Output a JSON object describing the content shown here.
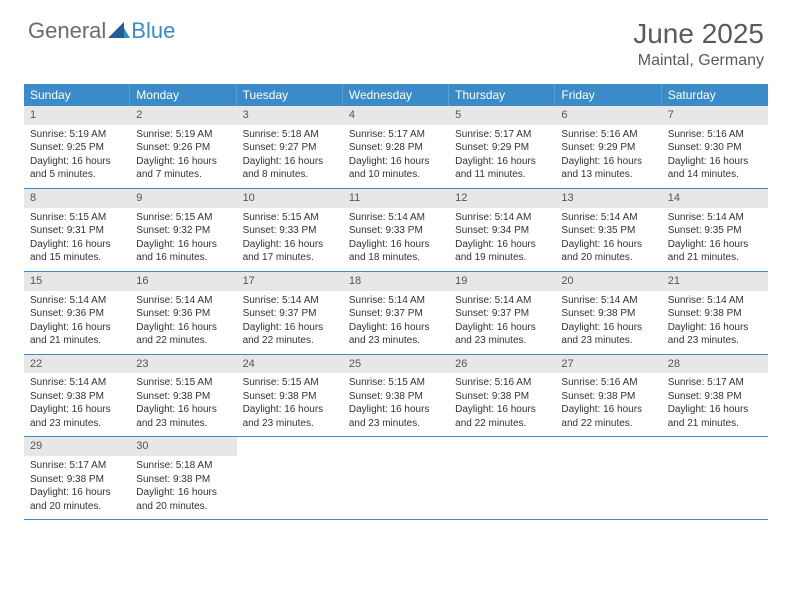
{
  "logo": {
    "text1": "General",
    "text2": "Blue",
    "color1": "#6b6b6b",
    "color2": "#3b8bc9"
  },
  "title": "June 2025",
  "location": "Maintal, Germany",
  "colors": {
    "header_bg": "#3b8bc9",
    "header_text": "#ffffff",
    "daynum_bg": "#e7e7e7",
    "row_border": "#3b8bc9",
    "text": "#333333"
  },
  "layout": {
    "cols": 7,
    "cell_font_size": 10
  },
  "days_of_week": [
    "Sunday",
    "Monday",
    "Tuesday",
    "Wednesday",
    "Thursday",
    "Friday",
    "Saturday"
  ],
  "weeks": [
    [
      {
        "n": 1,
        "sunrise": "5:19 AM",
        "sunset": "9:25 PM",
        "daylight": "16 hours and 5 minutes."
      },
      {
        "n": 2,
        "sunrise": "5:19 AM",
        "sunset": "9:26 PM",
        "daylight": "16 hours and 7 minutes."
      },
      {
        "n": 3,
        "sunrise": "5:18 AM",
        "sunset": "9:27 PM",
        "daylight": "16 hours and 8 minutes."
      },
      {
        "n": 4,
        "sunrise": "5:17 AM",
        "sunset": "9:28 PM",
        "daylight": "16 hours and 10 minutes."
      },
      {
        "n": 5,
        "sunrise": "5:17 AM",
        "sunset": "9:29 PM",
        "daylight": "16 hours and 11 minutes."
      },
      {
        "n": 6,
        "sunrise": "5:16 AM",
        "sunset": "9:29 PM",
        "daylight": "16 hours and 13 minutes."
      },
      {
        "n": 7,
        "sunrise": "5:16 AM",
        "sunset": "9:30 PM",
        "daylight": "16 hours and 14 minutes."
      }
    ],
    [
      {
        "n": 8,
        "sunrise": "5:15 AM",
        "sunset": "9:31 PM",
        "daylight": "16 hours and 15 minutes."
      },
      {
        "n": 9,
        "sunrise": "5:15 AM",
        "sunset": "9:32 PM",
        "daylight": "16 hours and 16 minutes."
      },
      {
        "n": 10,
        "sunrise": "5:15 AM",
        "sunset": "9:33 PM",
        "daylight": "16 hours and 17 minutes."
      },
      {
        "n": 11,
        "sunrise": "5:14 AM",
        "sunset": "9:33 PM",
        "daylight": "16 hours and 18 minutes."
      },
      {
        "n": 12,
        "sunrise": "5:14 AM",
        "sunset": "9:34 PM",
        "daylight": "16 hours and 19 minutes."
      },
      {
        "n": 13,
        "sunrise": "5:14 AM",
        "sunset": "9:35 PM",
        "daylight": "16 hours and 20 minutes."
      },
      {
        "n": 14,
        "sunrise": "5:14 AM",
        "sunset": "9:35 PM",
        "daylight": "16 hours and 21 minutes."
      }
    ],
    [
      {
        "n": 15,
        "sunrise": "5:14 AM",
        "sunset": "9:36 PM",
        "daylight": "16 hours and 21 minutes."
      },
      {
        "n": 16,
        "sunrise": "5:14 AM",
        "sunset": "9:36 PM",
        "daylight": "16 hours and 22 minutes."
      },
      {
        "n": 17,
        "sunrise": "5:14 AM",
        "sunset": "9:37 PM",
        "daylight": "16 hours and 22 minutes."
      },
      {
        "n": 18,
        "sunrise": "5:14 AM",
        "sunset": "9:37 PM",
        "daylight": "16 hours and 23 minutes."
      },
      {
        "n": 19,
        "sunrise": "5:14 AM",
        "sunset": "9:37 PM",
        "daylight": "16 hours and 23 minutes."
      },
      {
        "n": 20,
        "sunrise": "5:14 AM",
        "sunset": "9:38 PM",
        "daylight": "16 hours and 23 minutes."
      },
      {
        "n": 21,
        "sunrise": "5:14 AM",
        "sunset": "9:38 PM",
        "daylight": "16 hours and 23 minutes."
      }
    ],
    [
      {
        "n": 22,
        "sunrise": "5:14 AM",
        "sunset": "9:38 PM",
        "daylight": "16 hours and 23 minutes."
      },
      {
        "n": 23,
        "sunrise": "5:15 AM",
        "sunset": "9:38 PM",
        "daylight": "16 hours and 23 minutes."
      },
      {
        "n": 24,
        "sunrise": "5:15 AM",
        "sunset": "9:38 PM",
        "daylight": "16 hours and 23 minutes."
      },
      {
        "n": 25,
        "sunrise": "5:15 AM",
        "sunset": "9:38 PM",
        "daylight": "16 hours and 23 minutes."
      },
      {
        "n": 26,
        "sunrise": "5:16 AM",
        "sunset": "9:38 PM",
        "daylight": "16 hours and 22 minutes."
      },
      {
        "n": 27,
        "sunrise": "5:16 AM",
        "sunset": "9:38 PM",
        "daylight": "16 hours and 22 minutes."
      },
      {
        "n": 28,
        "sunrise": "5:17 AM",
        "sunset": "9:38 PM",
        "daylight": "16 hours and 21 minutes."
      }
    ],
    [
      {
        "n": 29,
        "sunrise": "5:17 AM",
        "sunset": "9:38 PM",
        "daylight": "16 hours and 20 minutes."
      },
      {
        "n": 30,
        "sunrise": "5:18 AM",
        "sunset": "9:38 PM",
        "daylight": "16 hours and 20 minutes."
      },
      null,
      null,
      null,
      null,
      null
    ]
  ]
}
